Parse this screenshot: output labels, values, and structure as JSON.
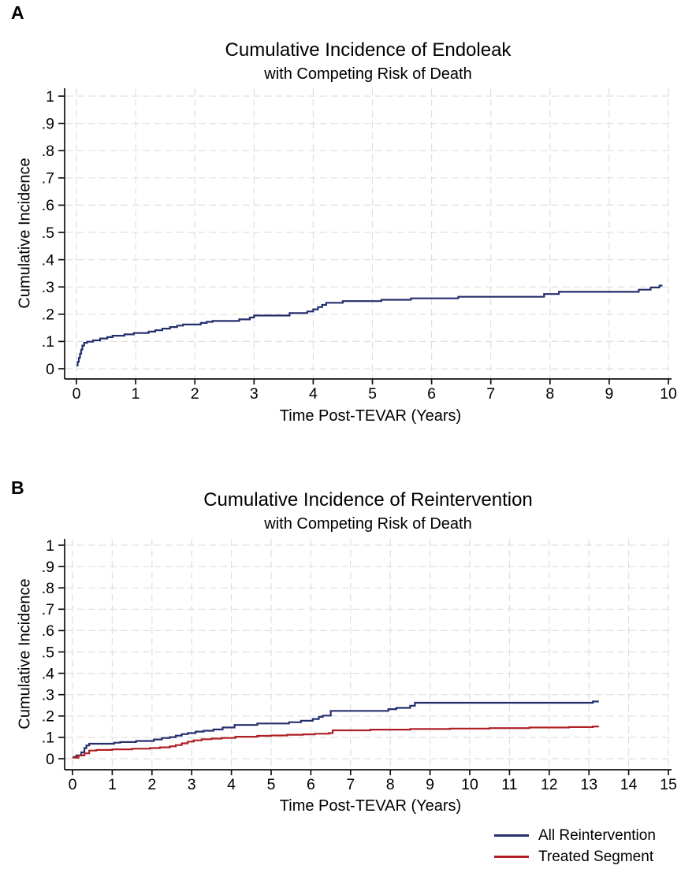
{
  "figure": {
    "panel_a_letter": "A",
    "panel_b_letter": "B"
  },
  "colors": {
    "navy_line": "#232f6d",
    "red_line": "#ae1e24",
    "gridline": "#e0e0e0",
    "axis": "#111111"
  },
  "chart_data": [
    {
      "type": "line",
      "panel_label": "A",
      "title": "Cumulative Incidence of Endoleak",
      "subtitle": "with Competing Risk of Death",
      "xlabel": "Time Post-TEVAR (Years)",
      "ylabel": "Cumulative Incidence",
      "xlim": [
        0,
        10
      ],
      "ylim": [
        0,
        1
      ],
      "grid": "dashed",
      "step": true,
      "xtick_values": [
        0,
        1,
        2,
        3,
        4,
        5,
        6,
        7,
        8,
        9,
        10
      ],
      "xtick_labels": [
        "0",
        "1",
        "2",
        "3",
        "4",
        "5",
        "6",
        "7",
        "8",
        "9",
        "10"
      ],
      "ytick_values": [
        0,
        0.1,
        0.2,
        0.3,
        0.4,
        0.5,
        0.6,
        0.7,
        0.8,
        0.9,
        1
      ],
      "ytick_labels": [
        "0",
        ".1",
        ".2",
        ".3",
        ".4",
        ".5",
        ".6",
        ".7",
        ".8",
        ".9",
        "1"
      ],
      "series": [
        {
          "name": "Cumulative Incidence of Endoleak",
          "color": "#232f6d",
          "end_x": 9.9,
          "points": [
            [
              0,
              0.012
            ],
            [
              0.02,
              0.025
            ],
            [
              0.04,
              0.04
            ],
            [
              0.06,
              0.055
            ],
            [
              0.08,
              0.07
            ],
            [
              0.1,
              0.085
            ],
            [
              0.13,
              0.095
            ],
            [
              0.18,
              0.099
            ],
            [
              0.28,
              0.104
            ],
            [
              0.4,
              0.111
            ],
            [
              0.52,
              0.116
            ],
            [
              0.61,
              0.121
            ],
            [
              0.81,
              0.126
            ],
            [
              0.97,
              0.131
            ],
            [
              1.22,
              0.136
            ],
            [
              1.33,
              0.141
            ],
            [
              1.45,
              0.147
            ],
            [
              1.58,
              0.153
            ],
            [
              1.7,
              0.158
            ],
            [
              1.8,
              0.162
            ],
            [
              2.1,
              0.168
            ],
            [
              2.2,
              0.172
            ],
            [
              2.3,
              0.175
            ],
            [
              2.75,
              0.181
            ],
            [
              2.93,
              0.188
            ],
            [
              3.0,
              0.195
            ],
            [
              3.6,
              0.204
            ],
            [
              3.9,
              0.21
            ],
            [
              4.0,
              0.218
            ],
            [
              4.08,
              0.226
            ],
            [
              4.15,
              0.234
            ],
            [
              4.22,
              0.242
            ],
            [
              4.5,
              0.248
            ],
            [
              5.15,
              0.253
            ],
            [
              5.65,
              0.258
            ],
            [
              6.45,
              0.264
            ],
            [
              7.9,
              0.274
            ],
            [
              8.15,
              0.282
            ],
            [
              9.5,
              0.29
            ],
            [
              9.7,
              0.298
            ],
            [
              9.85,
              0.305
            ]
          ]
        }
      ]
    },
    {
      "type": "line",
      "panel_label": "B",
      "title": "Cumulative Incidence of Reintervention",
      "subtitle": "with Competing Risk of Death",
      "xlabel": "Time Post-TEVAR (Years)",
      "ylabel": "Cumulative Incidence",
      "xlim": [
        0,
        15
      ],
      "ylim": [
        0,
        1
      ],
      "grid": "dashed",
      "step": true,
      "xtick_values": [
        0,
        1,
        2,
        3,
        4,
        5,
        6,
        7,
        8,
        9,
        10,
        11,
        12,
        13,
        14,
        15
      ],
      "xtick_labels": [
        "0",
        "1",
        "2",
        "3",
        "4",
        "5",
        "6",
        "7",
        "8",
        "9",
        "10",
        "11",
        "12",
        "13",
        "14",
        "15"
      ],
      "ytick_values": [
        0,
        0.1,
        0.2,
        0.3,
        0.4,
        0.5,
        0.6,
        0.7,
        0.8,
        0.9,
        1
      ],
      "ytick_labels": [
        "0",
        ".1",
        ".2",
        ".3",
        ".4",
        ".5",
        ".6",
        ".7",
        ".8",
        ".9",
        "1"
      ],
      "legend": {
        "position": "bottom-right",
        "entries": [
          {
            "label": "All Reintervention",
            "color": "#232f6d"
          },
          {
            "label": "Treated Segment",
            "color": "#ae1e24"
          }
        ]
      },
      "series": [
        {
          "name": "All Reintervention",
          "color": "#232f6d",
          "end_x": 13.25,
          "points": [
            [
              0,
              0.008
            ],
            [
              0.1,
              0.015
            ],
            [
              0.22,
              0.03
            ],
            [
              0.3,
              0.05
            ],
            [
              0.35,
              0.062
            ],
            [
              0.42,
              0.07
            ],
            [
              1.05,
              0.075
            ],
            [
              1.2,
              0.078
            ],
            [
              1.6,
              0.083
            ],
            [
              2.05,
              0.09
            ],
            [
              2.25,
              0.097
            ],
            [
              2.45,
              0.101
            ],
            [
              2.6,
              0.108
            ],
            [
              2.75,
              0.115
            ],
            [
              2.9,
              0.12
            ],
            [
              3.1,
              0.127
            ],
            [
              3.3,
              0.131
            ],
            [
              3.55,
              0.137
            ],
            [
              3.78,
              0.146
            ],
            [
              4.08,
              0.158
            ],
            [
              4.65,
              0.165
            ],
            [
              5.45,
              0.171
            ],
            [
              5.75,
              0.178
            ],
            [
              6.05,
              0.186
            ],
            [
              6.2,
              0.196
            ],
            [
              6.3,
              0.202
            ],
            [
              6.5,
              0.224
            ],
            [
              7.95,
              0.232
            ],
            [
              8.15,
              0.238
            ],
            [
              8.5,
              0.248
            ],
            [
              8.62,
              0.262
            ],
            [
              13.1,
              0.268
            ]
          ]
        },
        {
          "name": "Treated Segment",
          "color": "#ae1e24",
          "end_x": 13.25,
          "points": [
            [
              0,
              0.005
            ],
            [
              0.15,
              0.015
            ],
            [
              0.3,
              0.025
            ],
            [
              0.42,
              0.038
            ],
            [
              0.6,
              0.041
            ],
            [
              1.0,
              0.044
            ],
            [
              1.5,
              0.047
            ],
            [
              1.95,
              0.05
            ],
            [
              2.2,
              0.053
            ],
            [
              2.45,
              0.058
            ],
            [
              2.6,
              0.064
            ],
            [
              2.75,
              0.072
            ],
            [
              2.9,
              0.08
            ],
            [
              3.05,
              0.086
            ],
            [
              3.25,
              0.091
            ],
            [
              3.5,
              0.094
            ],
            [
              3.75,
              0.097
            ],
            [
              4.1,
              0.103
            ],
            [
              4.65,
              0.107
            ],
            [
              5.0,
              0.109
            ],
            [
              5.4,
              0.112
            ],
            [
              5.8,
              0.114
            ],
            [
              6.1,
              0.117
            ],
            [
              6.45,
              0.12
            ],
            [
              6.55,
              0.133
            ],
            [
              7.5,
              0.136
            ],
            [
              8.5,
              0.139
            ],
            [
              9.5,
              0.141
            ],
            [
              10.5,
              0.143
            ],
            [
              11.5,
              0.146
            ],
            [
              12.5,
              0.148
            ],
            [
              13.1,
              0.151
            ]
          ]
        }
      ]
    }
  ]
}
